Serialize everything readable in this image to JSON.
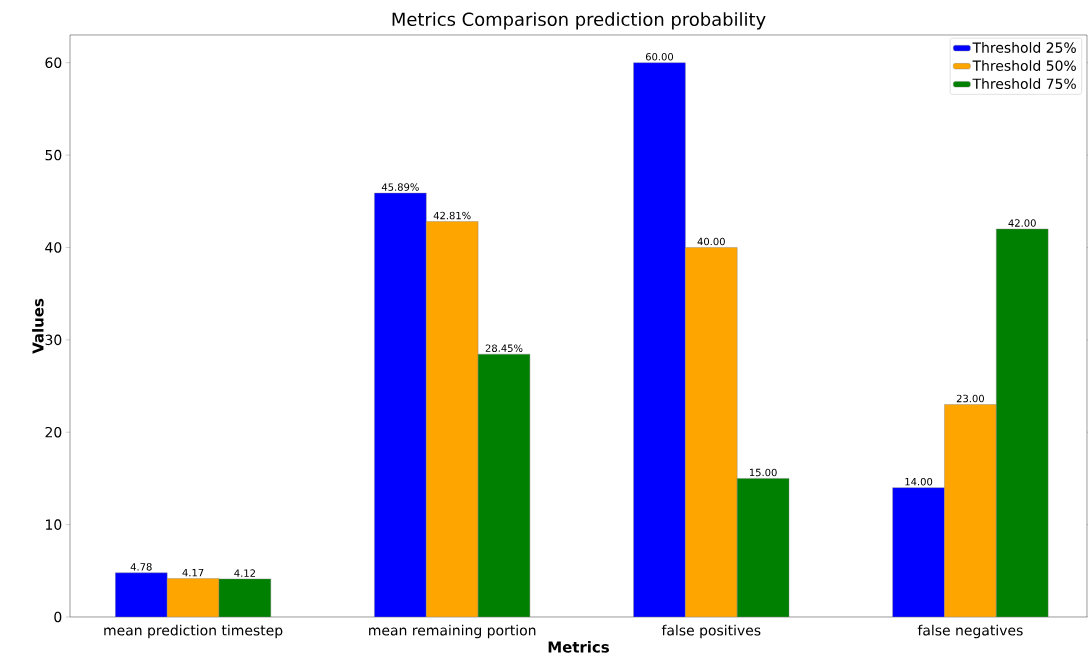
{
  "chart_data": {
    "type": "bar",
    "title": "Metrics Comparison prediction probability",
    "xlabel": "Metrics",
    "ylabel": "Values",
    "categories": [
      "mean prediction timestep",
      "mean remaining portion",
      "false positives",
      "false negatives"
    ],
    "series": [
      {
        "name": "Threshold 25%",
        "color": "#0000ff",
        "values": [
          4.78,
          45.89,
          60,
          14
        ],
        "value_labels": [
          "4.78",
          "45.89%",
          "60.00",
          "14.00"
        ]
      },
      {
        "name": "Threshold 50%",
        "color": "#ffa500",
        "values": [
          4.17,
          42.81,
          40,
          23
        ],
        "value_labels": [
          "4.17",
          "42.81%",
          "40.00",
          "23.00"
        ]
      },
      {
        "name": "Threshold 75%",
        "color": "#008000",
        "values": [
          4.12,
          28.45,
          15,
          42
        ],
        "value_labels": [
          "4.12",
          "28.45%",
          "15.00",
          "42.00"
        ]
      }
    ],
    "ylim": [
      0,
      63
    ],
    "yticks": [
      0,
      10,
      20,
      30,
      40,
      50,
      60
    ],
    "legend": "top right",
    "grid": false
  }
}
